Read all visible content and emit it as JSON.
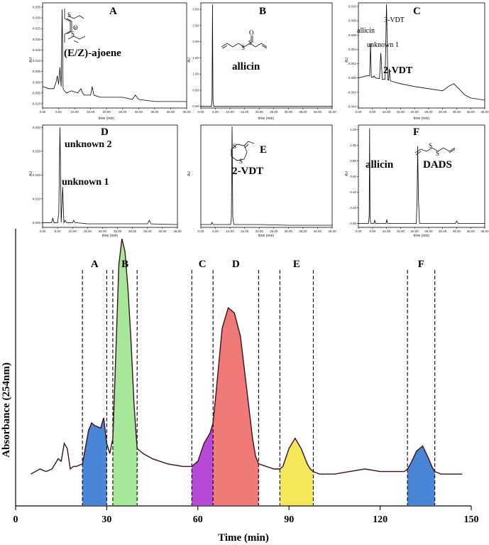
{
  "chart_data": [
    {
      "id": "A",
      "type": "line",
      "title": "A",
      "xlabel": "time (min)",
      "ylabel": "AU",
      "xlim": [
        0,
        45
      ],
      "ylim": [
        -0.012,
        0.037
      ],
      "xticks": [
        "0.00",
        "5.00",
        "10.00",
        "15.00",
        "20.00",
        "25.00",
        "30.00",
        "35.00",
        "40.00",
        "45.00"
      ],
      "yticks": [
        "0.035",
        "0.030",
        "0.025",
        "0.020",
        "0.015",
        "0.010",
        "0.005",
        "0.000",
        "-0.005",
        "-0.010"
      ],
      "ytick_values": [
        0.035,
        0.03,
        0.025,
        0.02,
        0.015,
        0.01,
        0.005,
        0.0,
        -0.005,
        -0.01
      ],
      "annotations": [
        "(E/Z)-ajoene"
      ],
      "x": [
        0,
        2,
        3.5,
        4.2,
        4.6,
        5.0,
        5.4,
        5.8,
        6.1,
        6.4,
        6.8,
        7.5,
        9,
        11,
        12,
        12.5,
        13,
        15,
        15.5,
        16,
        18,
        20,
        25,
        28,
        29,
        30,
        35,
        40,
        45
      ],
      "y": [
        -0.002,
        -0.003,
        -0.003,
        0.0,
        0.003,
        -0.001,
        0.007,
        -0.002,
        0.034,
        -0.003,
        -0.004,
        -0.005,
        -0.004,
        -0.005,
        -0.003,
        -0.005,
        -0.006,
        -0.006,
        -0.002,
        -0.006,
        -0.007,
        -0.007,
        -0.007,
        -0.008,
        -0.006,
        -0.008,
        -0.009,
        -0.009,
        -0.009
      ]
    },
    {
      "id": "B",
      "type": "line",
      "title": "B",
      "xlabel": "time (min)",
      "ylabel": "AU",
      "xlim": [
        0,
        45
      ],
      "ylim": [
        -0.05,
        3.2
      ],
      "xticks": [
        "0.00",
        "5.00",
        "10.00",
        "15.00",
        "20.00",
        "25.00",
        "30.00",
        "35.00",
        "40.00",
        "45.00"
      ],
      "yticks": [
        "3.00",
        "2.50",
        "2.00",
        "1.50",
        "1.00",
        "0.50",
        "0.00"
      ],
      "ytick_values": [
        3.0,
        2.5,
        2.0,
        1.5,
        1.0,
        0.5,
        0.0
      ],
      "annotations": [
        "allicin"
      ],
      "x": [
        0,
        3.6,
        3.85,
        4.0,
        4.15,
        4.4,
        10,
        20,
        30,
        45
      ],
      "y": [
        0.0,
        0.0,
        0.2,
        3.15,
        0.2,
        0.0,
        0.0,
        0.0,
        0.0,
        0.0
      ]
    },
    {
      "id": "C",
      "type": "line",
      "title": "C",
      "xlabel": "time (min)",
      "ylabel": "AU",
      "xlim": [
        0,
        45
      ],
      "ylim": [
        -0.0042,
        0.0105
      ],
      "xticks": [
        "0.00",
        "5.00",
        "10.00",
        "15.00",
        "20.00",
        "25.00",
        "30.00",
        "35.00",
        "40.00",
        "45.00"
      ],
      "yticks": [
        "0.010",
        "0.008",
        "0.006",
        "0.004",
        "0.002",
        "0.000",
        "-0.002",
        "-0.004"
      ],
      "ytick_values": [
        0.01,
        0.008,
        0.006,
        0.004,
        0.002,
        0.0,
        -0.002,
        -0.004
      ],
      "annotations": [
        "allicin",
        "3-VDT",
        "unknown 1",
        "2-VDT"
      ],
      "x": [
        0,
        3,
        4.0,
        4.3,
        4.6,
        5.3,
        5.6,
        6,
        7.5,
        8.0,
        8.5,
        9.5,
        10.0,
        10.5,
        10.8,
        11.0,
        11.4,
        13,
        15,
        20,
        25,
        30,
        32,
        34,
        36,
        38,
        40,
        45
      ],
      "y": [
        0.0,
        0.0003,
        0.0003,
        0.0048,
        0.0001,
        0.0001,
        0.0003,
        0.0,
        -0.0001,
        0.0035,
        -0.0002,
        -0.0002,
        0.0103,
        -0.0003,
        -0.0003,
        0.0013,
        -0.0004,
        -0.0006,
        -0.0008,
        -0.0012,
        -0.0015,
        -0.0018,
        -0.0012,
        -0.0008,
        -0.0016,
        -0.0024,
        -0.0028,
        -0.0031
      ]
    },
    {
      "id": "D",
      "type": "line",
      "title": "D",
      "xlabel": "time (min)",
      "ylabel": "AU",
      "xlim": [
        0,
        45
      ],
      "ylim": [
        -0.002,
        0.041
      ],
      "xticks": [
        "0.00",
        "5.00",
        "10.00",
        "15.00",
        "20.00",
        "25.00",
        "30.00",
        "35.00",
        "40.00",
        "45.00"
      ],
      "yticks": [
        "0.040",
        "0.030",
        "0.020",
        "0.010",
        "0.000"
      ],
      "ytick_values": [
        0.04,
        0.03,
        0.02,
        0.01,
        0.0
      ],
      "annotations": [
        "unknown 2",
        "unknown 1"
      ],
      "x": [
        0,
        3,
        3.4,
        3.8,
        4.2,
        5,
        5.4,
        5.8,
        6.2,
        6.7,
        7.1,
        7.5,
        8,
        10,
        10.4,
        10.8,
        15,
        20,
        30,
        35,
        35.6,
        36.2,
        40,
        45
      ],
      "y": [
        0.0,
        0.0,
        0.002,
        0.0,
        0.0,
        0.0,
        0.004,
        0.04,
        0.0,
        0.015,
        0.0,
        0.001,
        0.0,
        0.0,
        0.001,
        0.0,
        -0.0005,
        -0.0005,
        -0.0005,
        -0.0005,
        0.001,
        -0.0005,
        -0.0007,
        -0.0008
      ]
    },
    {
      "id": "E",
      "type": "line",
      "title": "E",
      "xlabel": "time (min)",
      "ylabel": "AU",
      "xlim": [
        0,
        45
      ],
      "ylim": [
        -4e-05,
        0.0014
      ],
      "xticks": [
        "0.00",
        "5.00",
        "10.00",
        "15.00",
        "20.00",
        "25.00",
        "30.00",
        "35.00",
        "40.00",
        "45.00"
      ],
      "yticks": [],
      "ytick_values": [],
      "annotations": [
        "2-VDT"
      ],
      "x": [
        0,
        2,
        3.5,
        3.8,
        4.2,
        10.2,
        10.45,
        10.7,
        10.95,
        11.3,
        20,
        30,
        45
      ],
      "y": [
        0.0,
        0.0,
        0.0,
        3e-05,
        0.0,
        0.0,
        0.0001,
        0.00138,
        0.0001,
        0.0,
        0.0,
        -1e-05,
        -1e-05
      ]
    },
    {
      "id": "F",
      "type": "line",
      "title": "F",
      "xlabel": "time (min)",
      "ylabel": "AU",
      "xlim": [
        0,
        45
      ],
      "ylim": [
        -0.05,
        1.26
      ],
      "xticks": [
        "0.00",
        "5.00",
        "10.00",
        "15.00",
        "20.00",
        "25.00",
        "30.00",
        "35.00",
        "40.00",
        "45.00"
      ],
      "yticks": [
        "1.20",
        "1.00",
        "0.80",
        "0.60",
        "0.40",
        "0.20",
        "0.00"
      ],
      "ytick_values": [
        1.2,
        1.0,
        0.8,
        0.6,
        0.4,
        0.2,
        0.0
      ],
      "annotations": [
        "allicin",
        "DADS"
      ],
      "x": [
        0,
        3.6,
        3.85,
        4.0,
        4.15,
        4.5,
        5.5,
        5.8,
        6.1,
        9.8,
        10.1,
        10.4,
        20.6,
        20.9,
        21.1,
        21.4,
        21.8,
        34.5,
        35,
        35.5,
        45
      ],
      "y": [
        0.0,
        0.0,
        0.1,
        1.22,
        0.05,
        0.0,
        0.0,
        0.04,
        0.0,
        0.0,
        0.05,
        0.0,
        0.0,
        0.3,
        0.99,
        0.3,
        0.0,
        0.0,
        0.03,
        0.0,
        0.0
      ]
    },
    {
      "id": "main",
      "type": "area",
      "xlabel": "Time (min)",
      "ylabel": "Absorbance (254nm)",
      "xlim": [
        0,
        150
      ],
      "ylim": [
        0,
        100
      ],
      "xticks": [
        0,
        30,
        60,
        90,
        120,
        150
      ],
      "x": [
        5,
        8,
        10,
        12,
        14,
        15,
        16,
        17,
        18,
        19,
        20,
        22,
        24,
        25,
        26,
        28,
        29,
        30,
        31,
        32,
        33,
        34,
        35,
        36,
        37,
        38,
        39,
        40,
        42,
        45,
        50,
        55,
        58,
        60,
        62,
        64,
        65,
        66,
        68,
        70,
        72,
        74,
        76,
        78,
        79,
        80,
        85,
        86,
        87,
        88,
        90,
        92,
        94,
        96,
        97,
        98,
        100,
        105,
        110,
        115,
        120,
        125,
        128,
        129,
        130,
        132,
        134,
        136,
        137,
        138,
        140,
        145,
        147
      ],
      "y": [
        8,
        10,
        9,
        10,
        14,
        13,
        20,
        18,
        10,
        11,
        11,
        12,
        25,
        28,
        27,
        26,
        30,
        20,
        16,
        22,
        55,
        90,
        100,
        95,
        80,
        60,
        35,
        18,
        16,
        14,
        12,
        11,
        11,
        13,
        20,
        24,
        28,
        40,
        65,
        73,
        71,
        62,
        42,
        22,
        15,
        12,
        10,
        10,
        10,
        11,
        18,
        22,
        18,
        12,
        10,
        9,
        8,
        8,
        9,
        10,
        9,
        9,
        9,
        10,
        12,
        17,
        19,
        14,
        11,
        9,
        8,
        8,
        8
      ],
      "fractions": [
        {
          "label": "A",
          "x0": 22,
          "x1": 30,
          "color": "#4a86d8"
        },
        {
          "label": "B",
          "x0": 32,
          "x1": 40,
          "color": "#a7e79a"
        },
        {
          "label": "C",
          "x0": 58,
          "x1": 65,
          "color": "#b64ad6"
        },
        {
          "label": "D",
          "x0": 65,
          "x1": 80,
          "color": "#f07a77"
        },
        {
          "label": "E",
          "x0": 87,
          "x1": 98,
          "color": "#f4e85a"
        },
        {
          "label": "F",
          "x0": 129,
          "x1": 138,
          "color": "#4a86d8"
        }
      ],
      "dashed_lines": [
        22,
        30,
        32,
        40,
        58,
        65,
        80,
        87,
        98,
        129,
        138
      ]
    }
  ],
  "colors": {
    "trace": "#000000",
    "main_trace": "#3a1218"
  }
}
